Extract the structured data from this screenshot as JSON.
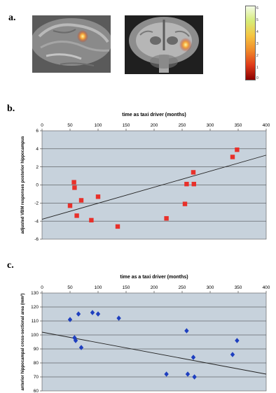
{
  "panel_a": {
    "label": "a.",
    "colorbar_ticks": [
      "6",
      "5",
      "4",
      "3",
      "2",
      "1",
      "0"
    ],
    "colors": {
      "colorbar_low": "#8b0000",
      "colorbar_mid": "#f5c542",
      "colorbar_high": "#f3fbe6"
    }
  },
  "chart_data": [
    {
      "type": "scatter",
      "panel_label": "b.",
      "title": "time as taxi driver (months)",
      "xlabel": "time as taxi driver (months)",
      "ylabel": "adjusted VBM responses posterior hippocampus",
      "xlim": [
        0,
        400
      ],
      "ylim": [
        -6,
        6
      ],
      "xticks": [
        0,
        50,
        100,
        150,
        200,
        250,
        300,
        350,
        400
      ],
      "yticks": [
        -6,
        -4,
        -2,
        0,
        2,
        4,
        6
      ],
      "x_axis_position": "top",
      "grid": true,
      "marker": "square",
      "marker_color": "#e8302a",
      "background": "#c7d2dc",
      "points": [
        {
          "x": 50,
          "y": -2.3
        },
        {
          "x": 57,
          "y": 0.3
        },
        {
          "x": 58,
          "y": -0.3
        },
        {
          "x": 62,
          "y": -3.4
        },
        {
          "x": 70,
          "y": -1.7
        },
        {
          "x": 88,
          "y": -3.9
        },
        {
          "x": 100,
          "y": -1.3
        },
        {
          "x": 135,
          "y": -4.6
        },
        {
          "x": 222,
          "y": -3.7
        },
        {
          "x": 255,
          "y": -2.1
        },
        {
          "x": 258,
          "y": 0.1
        },
        {
          "x": 270,
          "y": 1.4
        },
        {
          "x": 271,
          "y": 0.1
        },
        {
          "x": 340,
          "y": 3.1
        },
        {
          "x": 348,
          "y": 3.9
        }
      ],
      "trendline": [
        {
          "x": 0,
          "y": -3.8
        },
        {
          "x": 400,
          "y": 3.3
        }
      ]
    },
    {
      "type": "scatter",
      "panel_label": "c.",
      "title": "time as a taxi driver (months)",
      "xlabel": "time as a taxi driver (months)",
      "ylabel": "anterior hippocampal cross-sectional area (mm²)",
      "xlim": [
        0,
        400
      ],
      "ylim": [
        60,
        130
      ],
      "xticks": [
        0,
        50,
        100,
        150,
        200,
        250,
        300,
        350,
        400
      ],
      "yticks": [
        60,
        70,
        80,
        90,
        100,
        110,
        120,
        130
      ],
      "x_axis_position": "top",
      "grid": true,
      "marker": "diamond",
      "marker_color": "#1e3fbf",
      "background": "#c7d2dc",
      "points": [
        {
          "x": 50,
          "y": 111
        },
        {
          "x": 58,
          "y": 98
        },
        {
          "x": 60,
          "y": 96
        },
        {
          "x": 65,
          "y": 115
        },
        {
          "x": 70,
          "y": 91
        },
        {
          "x": 90,
          "y": 116
        },
        {
          "x": 100,
          "y": 115
        },
        {
          "x": 137,
          "y": 112
        },
        {
          "x": 222,
          "y": 72
        },
        {
          "x": 258,
          "y": 103
        },
        {
          "x": 260,
          "y": 72
        },
        {
          "x": 270,
          "y": 84
        },
        {
          "x": 272,
          "y": 70
        },
        {
          "x": 340,
          "y": 86
        },
        {
          "x": 348,
          "y": 96
        }
      ],
      "trendline": [
        {
          "x": 0,
          "y": 102
        },
        {
          "x": 400,
          "y": 72
        }
      ]
    }
  ]
}
